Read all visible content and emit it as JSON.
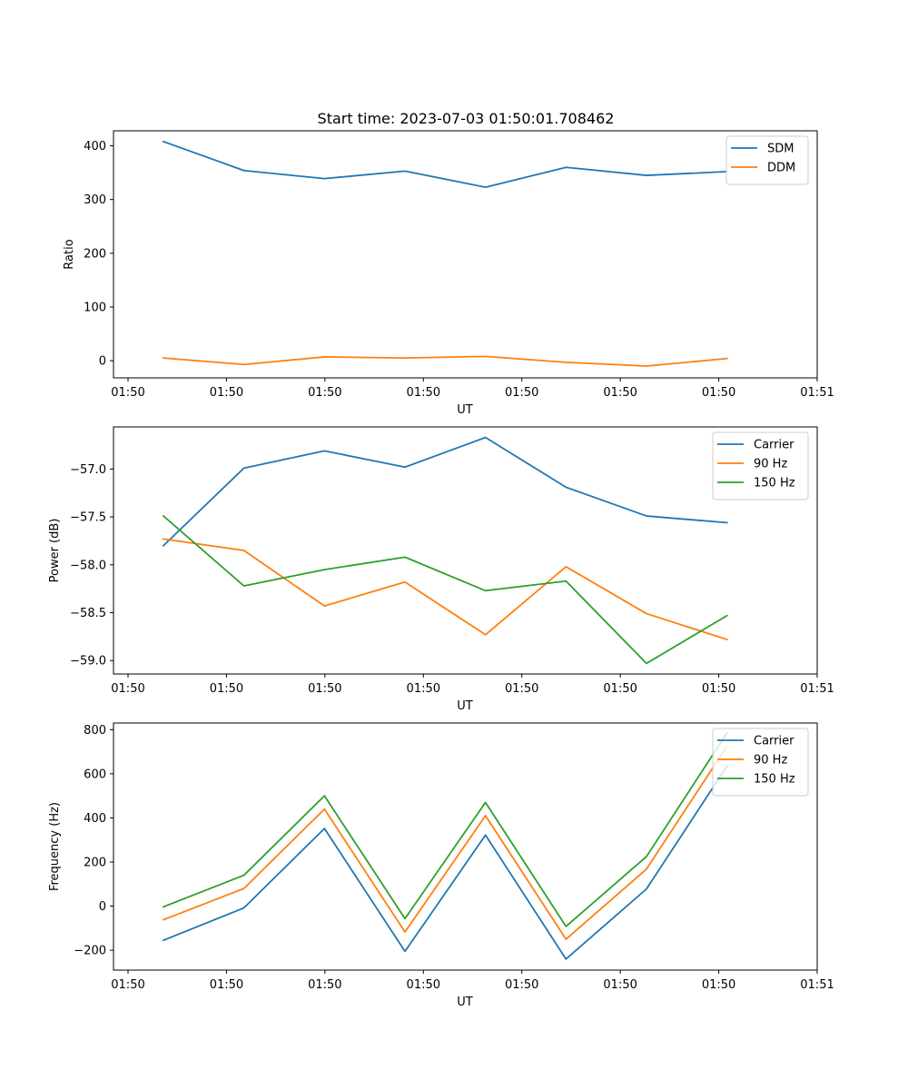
{
  "title": "Start time: 2023-07-03 01:50:01.708462",
  "colors": {
    "blue": "#1f77b4",
    "orange": "#ff7f0e",
    "green": "#2ca02c"
  },
  "chart_data": [
    {
      "type": "line",
      "title": "Start time: 2023-07-03 01:50:01.708462",
      "xlabel": "UT",
      "ylabel": "Ratio",
      "x_tick_labels": [
        "01:50",
        "01:50",
        "01:50",
        "01:50",
        "01:50",
        "01:50",
        "01:50",
        "01:51"
      ],
      "x": [
        1,
        2,
        3,
        4,
        5,
        6,
        7,
        8
      ],
      "xlim": [
        0.38,
        9.12
      ],
      "ylim": [
        -32,
        428
      ],
      "yticks": [
        0,
        100,
        200,
        300,
        400
      ],
      "ytick_labels": [
        "0",
        "100",
        "200",
        "300",
        "400"
      ],
      "legend": "top-right",
      "series": [
        {
          "name": "SDM",
          "color": "#1f77b4",
          "values": [
            408,
            354,
            339,
            353,
            323,
            360,
            345,
            352
          ]
        },
        {
          "name": "DDM",
          "color": "#ff7f0e",
          "values": [
            5,
            -7,
            7,
            5,
            8,
            -3,
            -10,
            4
          ]
        }
      ]
    },
    {
      "type": "line",
      "title": "",
      "xlabel": "UT",
      "ylabel": "Power (dB)",
      "x_tick_labels": [
        "01:50",
        "01:50",
        "01:50",
        "01:50",
        "01:50",
        "01:50",
        "01:50",
        "01:51"
      ],
      "x": [
        1,
        2,
        3,
        4,
        5,
        6,
        7,
        8
      ],
      "xlim": [
        0.38,
        9.12
      ],
      "ylim": [
        -59.14,
        -56.56
      ],
      "yticks": [
        -59.0,
        -58.5,
        -58.0,
        -57.5,
        -57.0
      ],
      "ytick_labels": [
        "−59.0",
        "−58.5",
        "−58.0",
        "−57.5",
        "−57.0"
      ],
      "legend": "top-right",
      "series": [
        {
          "name": "Carrier",
          "color": "#1f77b4",
          "values": [
            -57.8,
            -56.99,
            -56.81,
            -56.98,
            -56.67,
            -57.19,
            -57.49,
            -57.56
          ]
        },
        {
          "name": "90 Hz",
          "color": "#ff7f0e",
          "values": [
            -57.73,
            -57.85,
            -58.43,
            -58.18,
            -58.73,
            -58.02,
            -58.51,
            -58.78
          ]
        },
        {
          "name": "150 Hz",
          "color": "#2ca02c",
          "values": [
            -57.49,
            -58.22,
            -58.05,
            -57.92,
            -58.27,
            -58.17,
            -59.03,
            -58.53
          ]
        }
      ]
    },
    {
      "type": "line",
      "title": "",
      "xlabel": "UT",
      "ylabel": "Frequency (Hz)",
      "x_tick_labels": [
        "01:50",
        "01:50",
        "01:50",
        "01:50",
        "01:50",
        "01:50",
        "01:50",
        "01:51"
      ],
      "x": [
        1,
        2,
        3,
        4,
        5,
        6,
        7,
        8
      ],
      "xlim": [
        0.38,
        9.12
      ],
      "ylim": [
        -290,
        830
      ],
      "yticks": [
        -200,
        0,
        200,
        400,
        600,
        800
      ],
      "ytick_labels": [
        "−200",
        "0",
        "200",
        "400",
        "600",
        "800"
      ],
      "legend": "top-right",
      "series": [
        {
          "name": "Carrier",
          "color": "#1f77b4",
          "values": [
            -155,
            -8,
            352,
            -205,
            322,
            -240,
            78,
            635
          ]
        },
        {
          "name": "90 Hz",
          "color": "#ff7f0e",
          "values": [
            -62,
            80,
            440,
            -117,
            410,
            -150,
            168,
            725
          ]
        },
        {
          "name": "150 Hz",
          "color": "#2ca02c",
          "values": [
            -3,
            140,
            500,
            -57,
            470,
            -92,
            225,
            785
          ]
        }
      ]
    }
  ]
}
